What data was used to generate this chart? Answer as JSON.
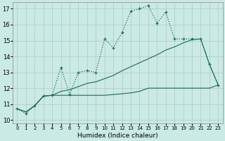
{
  "title": "",
  "xlabel": "Humidex (Indice chaleur)",
  "ylabel": "",
  "bg_color": "#caeae4",
  "grid_color": "#b0c8c4",
  "line_color": "#1a6b5a",
  "xlim": [
    -0.5,
    23.5
  ],
  "ylim": [
    9.8,
    17.4
  ],
  "yticks": [
    10,
    11,
    12,
    13,
    14,
    15,
    16,
    17
  ],
  "xticks": [
    0,
    1,
    2,
    3,
    4,
    5,
    6,
    7,
    8,
    9,
    10,
    11,
    12,
    13,
    14,
    15,
    16,
    17,
    18,
    19,
    20,
    21,
    22,
    23
  ],
  "line1_x": [
    0,
    1,
    2,
    3,
    4,
    5,
    6,
    7,
    8,
    9,
    10,
    11,
    12,
    13,
    14,
    15,
    16,
    17,
    18,
    19,
    20,
    21,
    22,
    23
  ],
  "line1_y": [
    10.7,
    10.4,
    10.9,
    11.5,
    11.55,
    13.3,
    11.6,
    13.0,
    13.1,
    13.0,
    15.1,
    14.55,
    15.5,
    16.85,
    17.0,
    17.2,
    16.1,
    16.8,
    15.1,
    15.1,
    15.1,
    15.1,
    13.5,
    12.2
  ],
  "line2_x": [
    0,
    1,
    2,
    3,
    4,
    5,
    6,
    7,
    8,
    9,
    10,
    11,
    12,
    13,
    14,
    15,
    16,
    17,
    18,
    19,
    20,
    21,
    22,
    23
  ],
  "line2_y": [
    10.7,
    10.5,
    10.9,
    11.5,
    11.55,
    11.55,
    11.55,
    11.55,
    11.55,
    11.55,
    11.55,
    11.6,
    11.65,
    11.7,
    11.8,
    12.0,
    12.0,
    12.0,
    12.0,
    12.0,
    12.0,
    12.0,
    12.0,
    12.2
  ],
  "line3_x": [
    0,
    1,
    2,
    3,
    4,
    5,
    6,
    7,
    8,
    9,
    10,
    11,
    12,
    13,
    14,
    15,
    16,
    17,
    18,
    19,
    20,
    21,
    22,
    23
  ],
  "line3_y": [
    10.7,
    10.5,
    10.9,
    11.5,
    11.55,
    11.8,
    11.9,
    12.1,
    12.3,
    12.4,
    12.6,
    12.8,
    13.1,
    13.35,
    13.6,
    13.85,
    14.1,
    14.4,
    14.6,
    14.85,
    15.05,
    15.1,
    13.5,
    12.2
  ]
}
